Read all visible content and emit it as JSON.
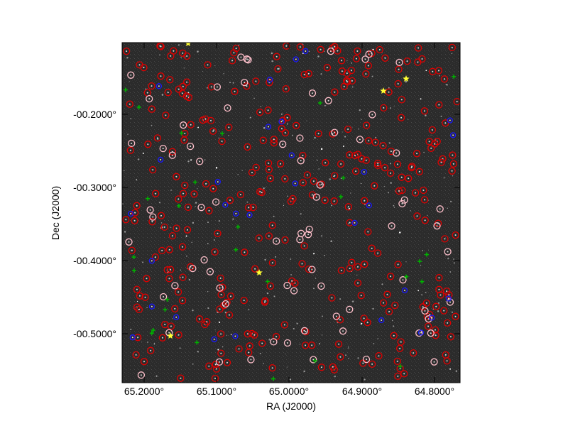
{
  "figure": {
    "xlabel": "RA (J2000)",
    "ylabel": "Dec (J2000)",
    "x_ticks": [
      "65.2000°",
      "65.1000°",
      "65.0000°",
      "64.9000°",
      "64.8000°"
    ],
    "y_ticks": [
      "-00.2000°",
      "-00.3000°",
      "-00.4000°",
      "-00.5000°"
    ],
    "colors": {
      "background": "#2a2a2a",
      "red_markers": "#e00000",
      "pink_markers": "#ffc0cb",
      "blue_markers": "#1a1aff",
      "green_markers": "#00b000",
      "yellow_stars": "#ffff33",
      "frame": "#000000"
    }
  }
}
